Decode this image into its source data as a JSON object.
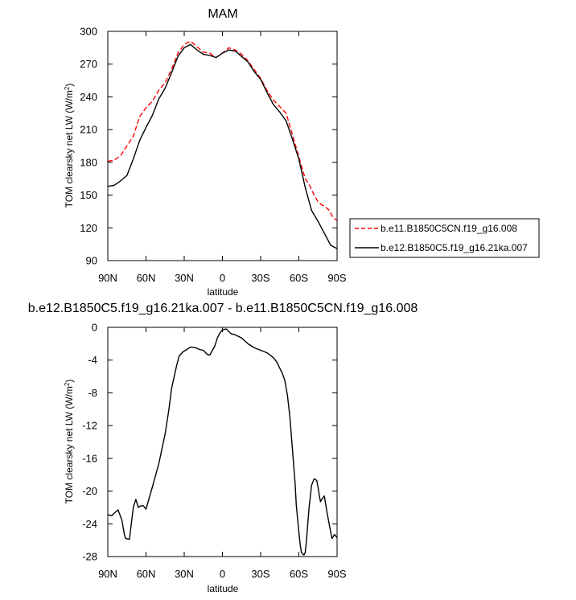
{
  "chart_data": [
    {
      "type": "line",
      "title": "MAM",
      "xlabel": "latitude",
      "ylabel": "TOM clearsky net LW (W/m²)",
      "ylabel_main": "TOM clearsky net LW (W/m",
      "ylabel_sup": "2",
      "ylabel_end": ")",
      "xlim": [
        90,
        -90
      ],
      "ylim": [
        90,
        300
      ],
      "x_ticks": [
        90,
        60,
        30,
        0,
        -30,
        -60,
        -90
      ],
      "x_tick_labels": [
        "90N",
        "60N",
        "30N",
        "0",
        "30S",
        "60S",
        "90S"
      ],
      "y_ticks": [
        90,
        120,
        150,
        180,
        210,
        240,
        270,
        300
      ],
      "y_tick_labels": [
        "90",
        "120",
        "150",
        "180",
        "210",
        "240",
        "270",
        "300"
      ],
      "legend": "outside-right",
      "series": [
        {
          "name": "b.e11.B1850C5CN.f19_g16.008",
          "color": "#ff0000",
          "style": "dashed",
          "x": [
            90,
            85,
            80,
            75,
            70,
            65,
            60,
            55,
            50,
            45,
            40,
            35,
            30,
            25,
            20,
            15,
            10,
            5,
            0,
            -5,
            -10,
            -15,
            -20,
            -25,
            -30,
            -35,
            -40,
            -45,
            -50,
            -55,
            -60,
            -65,
            -68,
            -70,
            -72,
            -75,
            -78,
            -80,
            -84,
            -87,
            -90
          ],
          "y": [
            181,
            182,
            186,
            195,
            204,
            222,
            230,
            236,
            246,
            253,
            265,
            280,
            288,
            291,
            286,
            281,
            280,
            276,
            280,
            285,
            283,
            279,
            273,
            265,
            257,
            246,
            237,
            231,
            225,
            205,
            185,
            165,
            160,
            155,
            150,
            144,
            141,
            140,
            136,
            129,
            127
          ]
        },
        {
          "name": "b.e12.B1850C5.f19_g16.21ka.007",
          "color": "#000000",
          "style": "solid",
          "x": [
            90,
            85,
            80,
            75,
            70,
            65,
            60,
            55,
            50,
            45,
            40,
            35,
            30,
            25,
            20,
            15,
            10,
            5,
            0,
            -5,
            -10,
            -15,
            -20,
            -25,
            -30,
            -35,
            -40,
            -45,
            -50,
            -55,
            -60,
            -65,
            -70,
            -75,
            -80,
            -85,
            -90
          ],
          "y": [
            158,
            159,
            163,
            168,
            183,
            200,
            212,
            223,
            238,
            248,
            262,
            277,
            285,
            288,
            283,
            279,
            278,
            276,
            280,
            283,
            282,
            277,
            272,
            263,
            256,
            244,
            233,
            226,
            218,
            201,
            183,
            157,
            136,
            126,
            115,
            104,
            101
          ]
        }
      ]
    },
    {
      "type": "line",
      "title": "b.e12.B1850C5.f19_g16.21ka.007 - b.e11.B1850C5CN.f19_g16.008",
      "xlabel": "latitude",
      "ylabel": "TOM clearsky net LW (W/m²)",
      "ylabel_main": "TOM clearsky net LW (W/m",
      "ylabel_sup": "2",
      "ylabel_end": ")",
      "xlim": [
        90,
        -90
      ],
      "ylim": [
        -28,
        0
      ],
      "x_ticks": [
        90,
        60,
        30,
        0,
        -30,
        -60,
        -90
      ],
      "x_tick_labels": [
        "90N",
        "60N",
        "30N",
        "0",
        "30S",
        "60S",
        "90S"
      ],
      "y_ticks": [
        -28,
        -24,
        -20,
        -16,
        -12,
        -8,
        -4,
        0
      ],
      "y_tick_labels": [
        "-28",
        "-24",
        "-20",
        "-16",
        "-12",
        "-8",
        "-4",
        "0"
      ],
      "series": [
        {
          "color": "#000000",
          "style": "solid",
          "x": [
            90,
            87,
            85,
            82,
            79,
            77,
            76,
            73,
            70,
            68,
            66,
            64,
            62,
            60,
            55,
            50,
            45,
            42,
            40,
            36,
            34,
            31,
            29,
            25,
            21,
            18,
            15,
            12,
            10,
            6,
            4,
            2,
            0,
            -3,
            -5,
            -7,
            -10,
            -15,
            -20,
            -25,
            -30,
            -35,
            -40,
            -43,
            -45,
            -47,
            -49,
            -51,
            -53,
            -55,
            -57,
            -58,
            -60,
            -61,
            -62,
            -63,
            -64,
            -65,
            -66,
            -67,
            -68,
            -70,
            -72,
            -74,
            -75,
            -76,
            -77,
            -78,
            -80,
            -82,
            -84,
            -86,
            -88,
            -90
          ],
          "y": [
            -22.9,
            -23,
            -22.7,
            -22.3,
            -23.5,
            -25.3,
            -25.8,
            -25.9,
            -22,
            -21,
            -22,
            -21.8,
            -21.8,
            -22.2,
            -19.5,
            -16.7,
            -13,
            -10,
            -7.5,
            -4.7,
            -3.5,
            -3,
            -2.8,
            -2.4,
            -2.5,
            -2.7,
            -2.8,
            -3.3,
            -3.4,
            -2.3,
            -1.3,
            -0.7,
            -0.3,
            -0.2,
            -0.5,
            -0.8,
            -0.9,
            -1.3,
            -2,
            -2.5,
            -2.8,
            -3.1,
            -3.7,
            -4.3,
            -5,
            -5.6,
            -6.5,
            -8.3,
            -11,
            -15,
            -19,
            -21.7,
            -25,
            -26.5,
            -27.5,
            -27.7,
            -27.8,
            -27.5,
            -26,
            -24,
            -22,
            -19.3,
            -18.5,
            -18.7,
            -19.5,
            -20.5,
            -21.3,
            -21,
            -20.6,
            -22.5,
            -24.2,
            -25.8,
            -25.3,
            -25.7
          ]
        }
      ]
    }
  ]
}
